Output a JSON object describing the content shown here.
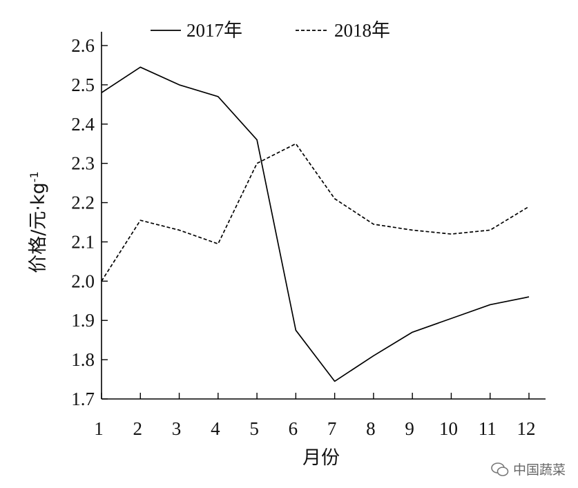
{
  "chart_data": {
    "type": "line",
    "x": [
      1,
      2,
      3,
      4,
      5,
      6,
      7,
      8,
      9,
      10,
      11,
      12
    ],
    "xticks": [
      "1",
      "2",
      "3",
      "4",
      "5",
      "6",
      "7",
      "8",
      "9",
      "10",
      "11",
      "12"
    ],
    "yticks": [
      "1.7",
      "1.8",
      "1.9",
      "2.0",
      "2.1",
      "2.2",
      "2.3",
      "2.4",
      "2.5",
      "2.6"
    ],
    "xlabel": "月份",
    "ylabel": "价格/元·kg",
    "ylabel_sup": "-1",
    "ylim": [
      1.7,
      2.6
    ],
    "xlim": [
      1,
      12
    ],
    "grid": false,
    "legend_position": "top",
    "series": [
      {
        "name": "2017年",
        "style": "solid",
        "color": "#000000",
        "values": [
          2.48,
          2.545,
          2.5,
          2.47,
          2.36,
          1.875,
          1.745,
          1.81,
          1.87,
          1.905,
          1.94,
          1.96
        ]
      },
      {
        "name": "2018年",
        "style": "dashed",
        "color": "#000000",
        "values": [
          2.0,
          2.155,
          2.13,
          2.095,
          2.3,
          2.35,
          2.21,
          2.145,
          2.13,
          2.12,
          2.13,
          2.19
        ]
      }
    ]
  },
  "watermark": {
    "text": "中国蔬菜",
    "icon": "wechat-icon"
  }
}
